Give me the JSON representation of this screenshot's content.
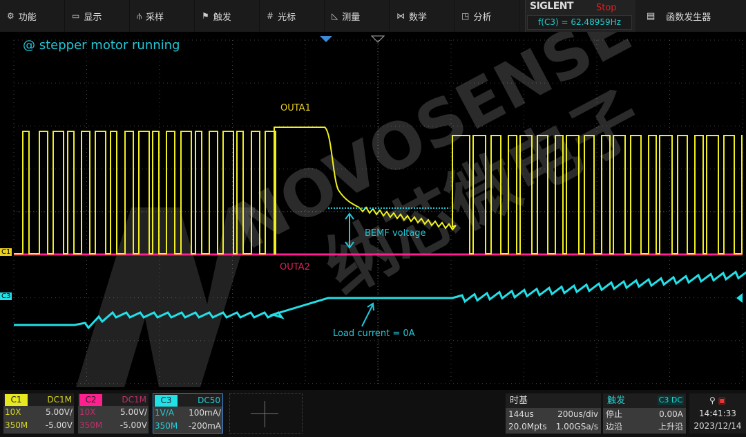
{
  "menu": [
    {
      "icon": "gear-icon",
      "glyph": "⚙",
      "label": "功能"
    },
    {
      "icon": "display-icon",
      "glyph": "▭",
      "label": "显示"
    },
    {
      "icon": "sample-icon",
      "glyph": "⫛",
      "label": "采样"
    },
    {
      "icon": "flag-icon",
      "glyph": "⚑",
      "label": "触发"
    },
    {
      "icon": "cursor-icon",
      "glyph": "#",
      "label": "光标"
    },
    {
      "icon": "measure-icon",
      "glyph": "◺",
      "label": "测量"
    },
    {
      "icon": "math-icon",
      "glyph": "⋈",
      "label": "数学"
    },
    {
      "icon": "analysis-icon",
      "glyph": "◳",
      "label": "分析"
    }
  ],
  "brand": {
    "logo": "SIGLENT",
    "status": "Stop",
    "freq": "f(C3) = 62.48959Hz"
  },
  "function_generator": {
    "glyph": "▤",
    "label": "函数发生器"
  },
  "annotations": {
    "title": "@ stepper motor running",
    "outa1": "OUTA1",
    "outa2": "OUTA2",
    "bemf": "BEMF voltage",
    "load": "Load current  = 0A"
  },
  "watermark": {
    "en": "NOVOSENSE",
    "cn": "纳芯微电子"
  },
  "markers": {
    "c1": "C1",
    "c3": "C3"
  },
  "colors": {
    "c1": "#f0f020",
    "c2": "#ff1f8f",
    "c3": "#22e0e8",
    "annotation": "#22c8d8",
    "grid": "#444444"
  },
  "channels": [
    {
      "name": "C1",
      "coupling": "DC1M",
      "probe": "10X",
      "scale": "5.00V/",
      "bw": "350M",
      "offset": "-5.00V"
    },
    {
      "name": "C2",
      "coupling": "DC1M",
      "probe": "10X",
      "scale": "5.00V/",
      "bw": "350M",
      "offset": "-5.00V"
    },
    {
      "name": "C3",
      "coupling": "DC50",
      "probe": "1V/A",
      "scale": "100mA/",
      "bw": "350M",
      "offset": "-200mA"
    }
  ],
  "timebase": {
    "title": "时基",
    "delay": "144us",
    "scale": "200us/div",
    "points": "20.0Mpts",
    "rate": "1.00GSa/s"
  },
  "trigger": {
    "title": "触发",
    "source": "C3 DC",
    "mode": "停止",
    "level": "0.00A",
    "type": "边沿",
    "slope": "上升沿"
  },
  "clock": {
    "time": "14:41:33",
    "date": "2023/12/14"
  }
}
